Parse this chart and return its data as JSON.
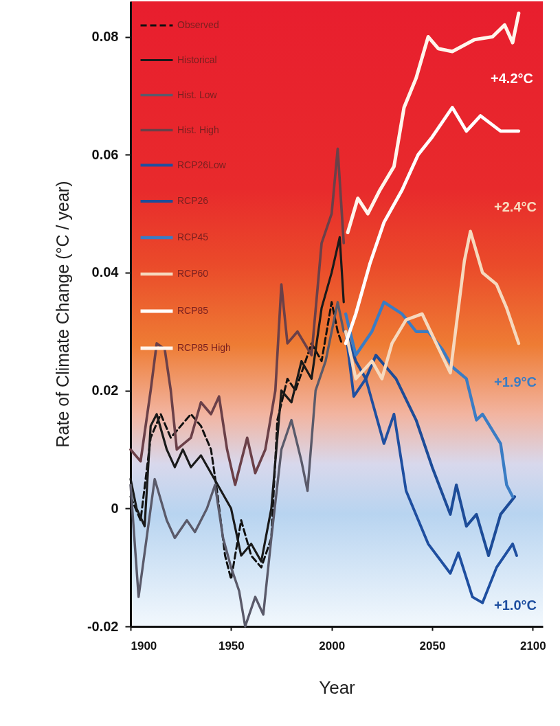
{
  "chart_data": {
    "type": "line",
    "xlabel": "Year",
    "ylabel": "Rate of Climate Change  (°C / year)",
    "xlim": [
      1900,
      2105
    ],
    "ylim": [
      -0.02,
      0.086
    ],
    "xticks": [
      1900,
      1950,
      2000,
      2050,
      2100
    ],
    "yticks": [
      -0.02,
      0,
      0.02,
      0.04,
      0.06,
      0.08
    ],
    "grid": false,
    "legend": "top left",
    "marker": "none",
    "series": [
      {
        "name": "Observed",
        "color": "#111111",
        "line_style": "dashed",
        "x": [
          1900,
          1905,
          1910,
          1915,
          1920,
          1925,
          1930,
          1935,
          1940,
          1943,
          1947,
          1950,
          1955,
          1960,
          1965,
          1970,
          1973,
          1978,
          1982,
          1985,
          1990,
          1995,
          2000,
          2003,
          2005
        ],
        "values": [
          0.002,
          -0.002,
          0.012,
          0.016,
          0.012,
          0.014,
          0.016,
          0.014,
          0.01,
          0.003,
          -0.008,
          -0.012,
          -0.002,
          -0.008,
          -0.01,
          -0.005,
          0.015,
          0.022,
          0.02,
          0.023,
          0.028,
          0.025,
          0.035,
          0.03,
          0.028
        ]
      },
      {
        "name": "Historical",
        "color": "#1a1a1a",
        "line_style": "solid",
        "x": [
          1900,
          1903,
          1907,
          1910,
          1913,
          1918,
          1922,
          1926,
          1930,
          1935,
          1940,
          1945,
          1950,
          1955,
          1960,
          1965,
          1970,
          1975,
          1980,
          1985,
          1990,
          1995,
          2000,
          2004,
          2006
        ],
        "values": [
          0.005,
          0,
          -0.003,
          0.014,
          0.016,
          0.01,
          0.007,
          0.01,
          0.007,
          0.009,
          0.006,
          0.003,
          0,
          -0.008,
          -0.006,
          -0.009,
          0,
          0.02,
          0.018,
          0.025,
          0.022,
          0.034,
          0.04,
          0.046,
          0.035
        ]
      },
      {
        "name": "Hist. Low",
        "color": "#5a5a6a",
        "line_style": "solid",
        "x": [
          1900,
          1904,
          1908,
          1912,
          1918,
          1922,
          1928,
          1932,
          1938,
          1942,
          1946,
          1950,
          1954,
          1957,
          1962,
          1966,
          1970,
          1975,
          1980,
          1985,
          1988,
          1992,
          1997,
          2003,
          2006
        ],
        "values": [
          0.004,
          -0.015,
          -0.005,
          0.005,
          -0.002,
          -0.005,
          -0.002,
          -0.004,
          0,
          0.004,
          -0.005,
          -0.01,
          -0.014,
          -0.02,
          -0.015,
          -0.018,
          -0.005,
          0.01,
          0.015,
          0.008,
          0.003,
          0.02,
          0.025,
          0.035,
          0.03
        ]
      },
      {
        "name": "Hist. High",
        "color": "#6b4048",
        "line_style": "solid",
        "x": [
          1900,
          1905,
          1910,
          1913,
          1917,
          1920,
          1923,
          1930,
          1935,
          1940,
          1944,
          1948,
          1952,
          1958,
          1962,
          1967,
          1972,
          1975,
          1978,
          1983,
          1990,
          1995,
          2000,
          2003,
          2006
        ],
        "values": [
          0.01,
          0.008,
          0.02,
          0.028,
          0.027,
          0.02,
          0.01,
          0.012,
          0.018,
          0.016,
          0.019,
          0.01,
          0.004,
          0.012,
          0.006,
          0.01,
          0.02,
          0.038,
          0.028,
          0.03,
          0.026,
          0.045,
          0.05,
          0.061,
          0.045
        ]
      },
      {
        "name": "RCP26Low",
        "color": "#1f4fa0",
        "line_style": "solid",
        "x": [
          2007,
          2011,
          2017,
          2026,
          2031,
          2037,
          2048,
          2059,
          2063,
          2070,
          2075,
          2082,
          2090,
          2092
        ],
        "values": [
          0.03,
          0.019,
          0.022,
          0.011,
          0.016,
          0.003,
          -0.006,
          -0.011,
          -0.0075,
          -0.015,
          -0.016,
          -0.01,
          -0.006,
          -0.008
        ]
      },
      {
        "name": "RCP26",
        "color": "#1d4c98",
        "line_style": "solid",
        "x": [
          2007,
          2012,
          2017,
          2022,
          2027,
          2032,
          2042,
          2050,
          2059,
          2062,
          2067,
          2072,
          2078,
          2084,
          2091
        ],
        "values": [
          0.03,
          0.025,
          0.022,
          0.026,
          0.024,
          0.022,
          0.015,
          0.007,
          -0.001,
          0.004,
          -0.003,
          -0.001,
          -0.008,
          -0.001,
          0.002
        ]
      },
      {
        "name": "RCP45",
        "color": "#3a7cc4",
        "line_style": "solid",
        "x": [
          2007,
          2012,
          2020,
          2026,
          2035,
          2042,
          2048,
          2055,
          2060,
          2067,
          2072,
          2075,
          2084,
          2087,
          2090
        ],
        "values": [
          0.033,
          0.026,
          0.03,
          0.035,
          0.033,
          0.03,
          0.03,
          0.027,
          0.024,
          0.022,
          0.015,
          0.016,
          0.011,
          0.004,
          0.002
        ]
      },
      {
        "name": "RCP60",
        "color": "#f6d9be",
        "line_style": "solid",
        "x": [
          2007,
          2012,
          2020,
          2025,
          2030,
          2037,
          2045,
          2052,
          2059,
          2066,
          2069,
          2075,
          2082,
          2087,
          2093
        ],
        "values": [
          0.03,
          0.022,
          0.025,
          0.022,
          0.028,
          0.032,
          0.033,
          0.028,
          0.023,
          0.042,
          0.047,
          0.04,
          0.038,
          0.034,
          0.028
        ]
      },
      {
        "name": "RCP85",
        "color": "#ffffff",
        "line_style": "solid",
        "x": [
          2007,
          2012,
          2019,
          2026,
          2035,
          2043,
          2050,
          2060,
          2067,
          2074,
          2084,
          2093
        ],
        "values": [
          0.028,
          0.033,
          0.0415,
          0.0485,
          0.054,
          0.06,
          0.063,
          0.068,
          0.064,
          0.0666,
          0.064,
          0.064
        ]
      },
      {
        "name": "RCP85 High",
        "color": "#fff5ec",
        "line_style": "solid",
        "x": [
          2008,
          2013,
          2018,
          2024,
          2031,
          2036,
          2042,
          2048,
          2053,
          2060,
          2071,
          2080,
          2086,
          2090,
          2093
        ],
        "values": [
          0.0468,
          0.0526,
          0.05,
          0.054,
          0.058,
          0.068,
          0.073,
          0.08,
          0.078,
          0.0775,
          0.0795,
          0.08,
          0.082,
          0.079,
          0.084
        ]
      }
    ],
    "annotations": [
      "+4.2°C",
      "+2.4°C",
      "+1.9°C",
      "+1.0°C"
    ]
  }
}
